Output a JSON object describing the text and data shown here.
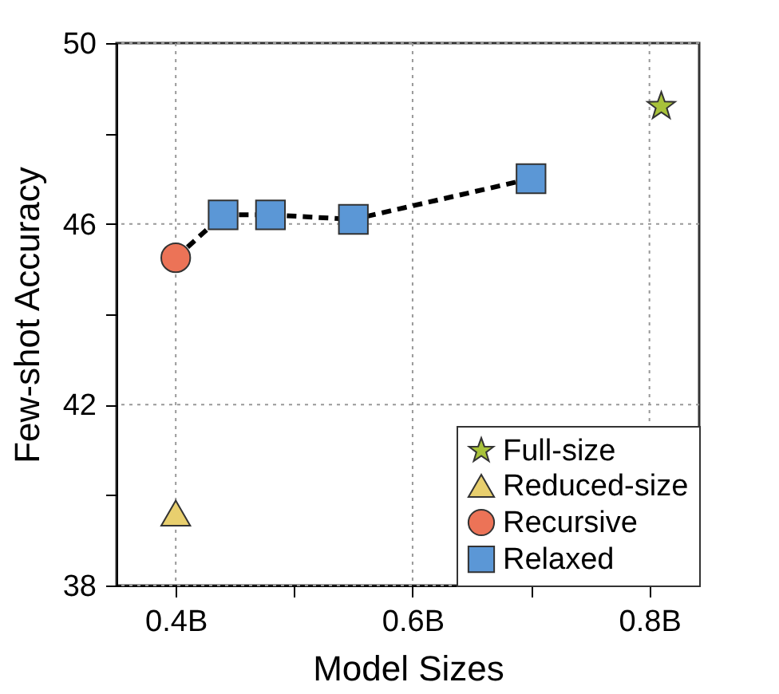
{
  "chart_data": {
    "type": "scatter",
    "xlabel": "Model Sizes",
    "ylabel": "Few-shot Accuracy",
    "xlim": [
      0.35,
      0.842
    ],
    "ylim": [
      38,
      50
    ],
    "xticks": [
      {
        "value": 0.4,
        "label": "0.4B"
      },
      {
        "value": 0.5,
        "label": null
      },
      {
        "value": 0.6,
        "label": "0.6B"
      },
      {
        "value": 0.7,
        "label": null
      },
      {
        "value": 0.8,
        "label": "0.8B"
      }
    ],
    "yticks": [
      38,
      {
        "value": 40,
        "label": null
      },
      42,
      {
        "value": 44,
        "label": null
      },
      46,
      {
        "value": 48,
        "label": null
      },
      50
    ],
    "grid": true,
    "legend": "bottom right",
    "series": [
      {
        "type": "line",
        "color": "#000000",
        "marker": "none",
        "line_style": "dashed",
        "x": [
          0.4,
          0.44,
          0.48,
          0.55,
          0.7
        ],
        "values": [
          45.25,
          46.2,
          46.2,
          46.1,
          47.0
        ]
      },
      {
        "name": "Full-size",
        "color": "#a8c23a",
        "marker": "star",
        "x": [
          0.81
        ],
        "values": [
          48.6
        ]
      },
      {
        "name": "Reduced-size",
        "color": "#e8cf6e",
        "marker": "triangle",
        "x": [
          0.4
        ],
        "values": [
          39.6
        ]
      },
      {
        "name": "Recursive",
        "color": "#ec7357",
        "marker": "circle",
        "x": [
          0.4
        ],
        "values": [
          45.25
        ]
      },
      {
        "name": "Relaxed",
        "color": "#5b97d6",
        "marker": "square",
        "x": [
          0.44,
          0.48,
          0.55,
          0.7
        ],
        "values": [
          46.2,
          46.2,
          46.1,
          47.0
        ]
      }
    ]
  }
}
